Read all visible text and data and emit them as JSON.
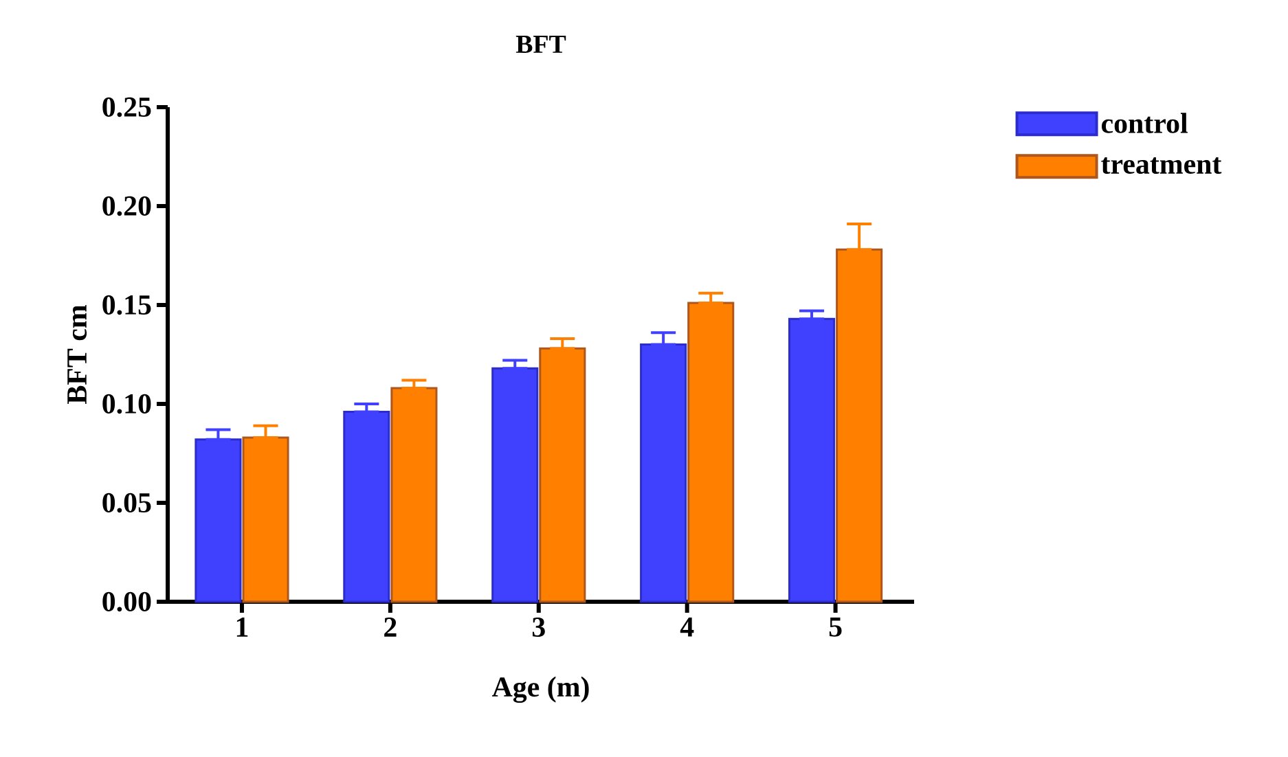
{
  "chart_data": {
    "type": "bar",
    "title": "BFT",
    "xlabel": "Age (m)",
    "ylabel": "BFT cm",
    "categories": [
      "1",
      "2",
      "3",
      "4",
      "5"
    ],
    "series": [
      {
        "name": "control",
        "color": "#4040ff",
        "values": [
          0.082,
          0.096,
          0.118,
          0.13,
          0.143
        ],
        "errors": [
          [
            0.082,
            0.087
          ],
          [
            0.096,
            0.1
          ],
          [
            0.118,
            0.122
          ],
          [
            0.13,
            0.136
          ],
          [
            0.143,
            0.147
          ]
        ]
      },
      {
        "name": "treatment",
        "color": "#ff8000",
        "values": [
          0.083,
          0.108,
          0.128,
          0.151,
          0.178
        ],
        "errors": [
          [
            0.083,
            0.089
          ],
          [
            0.108,
            0.112
          ],
          [
            0.128,
            0.133
          ],
          [
            0.151,
            0.156
          ],
          [
            0.178,
            0.191
          ]
        ]
      }
    ],
    "ylim": [
      0,
      0.25
    ],
    "yticks": [
      {
        "value": 0,
        "label": "0.00"
      },
      {
        "value": 0.05,
        "label": "0.05"
      },
      {
        "value": 0.1,
        "label": "0.10"
      },
      {
        "value": 0.15,
        "label": "0.15"
      },
      {
        "value": 0.2,
        "label": "0.20"
      },
      {
        "value": 0.25,
        "label": "0.25"
      }
    ],
    "grid": false,
    "legend": "top right"
  }
}
